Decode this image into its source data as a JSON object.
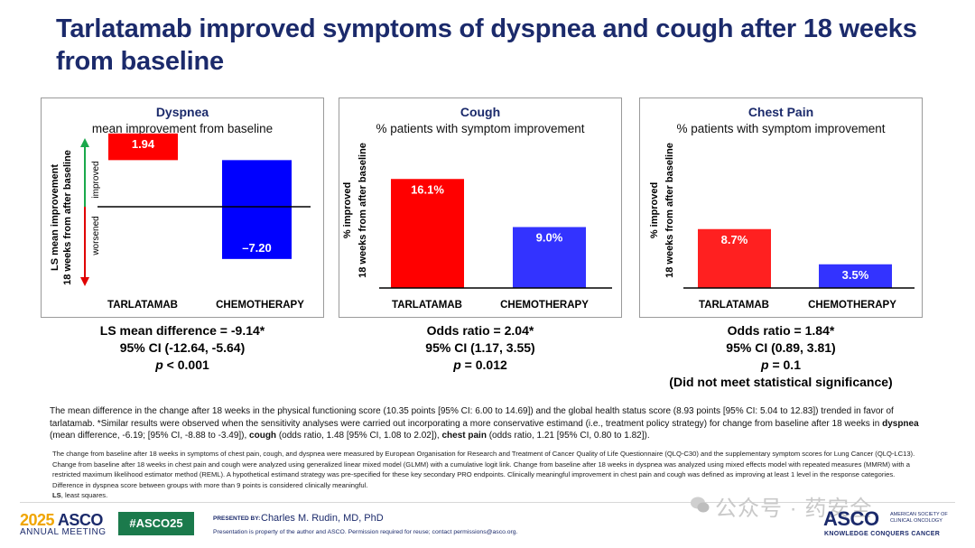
{
  "title": "Tarlatamab improved symptoms of dyspnea and cough after 18 weeks from baseline",
  "chart_data": [
    {
      "type": "bar",
      "title": "Dyspnea",
      "subtitle": "mean improvement from baseline",
      "ylabel_line1": "LS mean improvement",
      "ylabel_line2": "18 weeks from after baseline",
      "improved_label": "improved",
      "worsened_label": "worsened",
      "categories": [
        "TARLATAMAB",
        "CHEMOTHERAPY"
      ],
      "values": [
        1.94,
        -7.2
      ],
      "value_labels": [
        "1.94",
        "–7.20"
      ],
      "ylim": [
        -10,
        3
      ],
      "colors": [
        "#ff0000",
        "#0000ff"
      ],
      "stats": {
        "line1": "LS mean difference = -9.14*",
        "line2": "95% CI (-12.64, -5.64)",
        "p_label": "p",
        "p_value": " < 0.001",
        "line4": ""
      }
    },
    {
      "type": "bar",
      "title": "Cough",
      "subtitle": "% patients with symptom improvement",
      "ylabel_line1": "% improved",
      "ylabel_line2": "18 weeks from after baseline",
      "categories": [
        "TARLATAMAB",
        "CHEMOTHERAPY"
      ],
      "values": [
        16.1,
        9.0
      ],
      "value_labels": [
        "16.1%",
        "9.0%"
      ],
      "ylim": [
        0,
        20
      ],
      "colors": [
        "#ff0000",
        "#3333ff"
      ],
      "stats": {
        "line1": "Odds ratio = 2.04*",
        "line2": "95% CI (1.17, 3.55)",
        "p_label": "p",
        "p_value": " = 0.012",
        "line4": ""
      }
    },
    {
      "type": "bar",
      "title": "Chest Pain",
      "subtitle": "% patients with symptom improvement",
      "ylabel_line1": "% improved",
      "ylabel_line2": "18 weeks from after baseline",
      "categories": [
        "TARLATAMAB",
        "CHEMOTHERAPY"
      ],
      "values": [
        8.7,
        3.5
      ],
      "value_labels": [
        "8.7%",
        "3.5%"
      ],
      "ylim": [
        0,
        20
      ],
      "colors": [
        "#ff2020",
        "#3333ff"
      ],
      "stats": {
        "line1": "Odds ratio = 1.84*",
        "line2": "95% CI (0.89, 3.81)",
        "p_label": "p",
        "p_value": " = 0.1",
        "line4": "(Did not meet statistical significance)"
      }
    }
  ],
  "note1": {
    "text_a": "The mean difference in the change after 18 weeks in the physical functioning score (10.35 points [95% CI: 6.00 to 14.69]) and the global health status score (8.93 points [95% CI: 5.04 to 12.83]) trended in favor of tarlatamab.  *Similar results were observed when the sensitivity analyses were carried out incorporating a more conservative estimand (i.e., treatment policy strategy) for change from baseline after 18 weeks in ",
    "b1": "dyspnea",
    "text_b": " (mean difference, -6.19; [95% CI, -8.88 to -3.49]), ",
    "b2": "cough",
    "text_c": " (odds ratio, 1.48 [95% CI, 1.08 to 2.02]), ",
    "b3": "chest pain",
    "text_d": " (odds ratio, 1.21 [95% CI, 0.80 to 1.82])."
  },
  "note2": {
    "text": "The change from baseline after 18 weeks in symptoms of chest pain, cough, and dyspnea were measured by European Organisation for Research and Treatment of Cancer Quality of Life Questionnaire (QLQ-C30) and the supplementary symptom scores for Lung Cancer (QLQ-LC13). Change from baseline after 18 weeks in chest pain and cough were analyzed using generalized linear mixed model (GLMM) with a cumulative logit link. Change from baseline after 18 weeks in dyspnea was analyzed using mixed effects model with repeated measures (MMRM) with a restricted maximum likelihood estimator method (REML). A hypothetical estimand strategy was pre-specified for these key secondary PRO endpoints. Clinically meaningful improvement in chest pain and cough was defined as improving at least 1 level in the response categories. Difference in dyspnea score between groups with more than 9 points is considered clinically meaningful.",
    "abbr_bold": "LS",
    "abbr_text": ", least squares."
  },
  "footer": {
    "year": "2025",
    "asco": "ASCO",
    "annual_meeting": "ANNUAL MEETING",
    "hashtag": "#ASCO25",
    "presented_by": "PRESENTED BY:",
    "presenter": "Charles M. Rudin, MD, PhD",
    "note": "Presentation is property of the author and ASCO. Permission required for reuse; contact permissions@asco.org.",
    "watermark": "公众号 · 药安全",
    "asco_logo": "ASCO",
    "asco_small": "AMERICAN SOCIETY OF CLINICAL ONCOLOGY",
    "tagline": "KNOWLEDGE CONQUERS CANCER"
  }
}
